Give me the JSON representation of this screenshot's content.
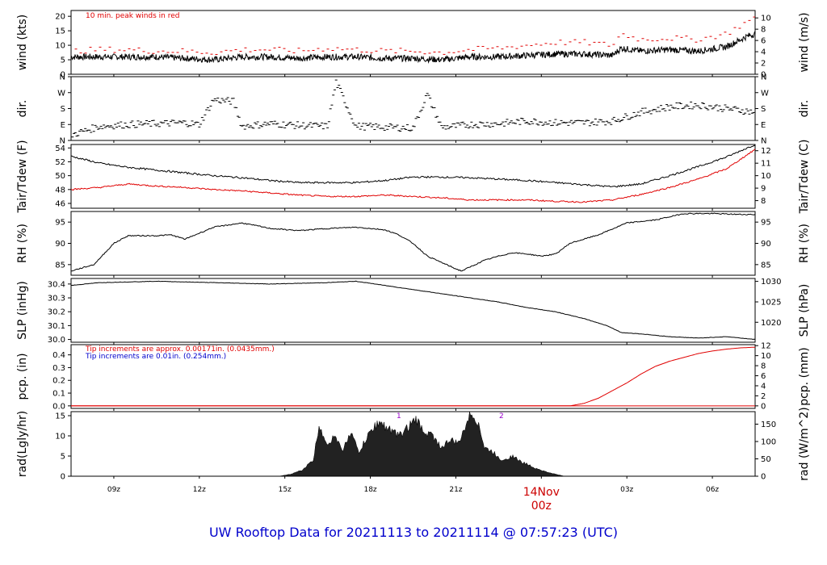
{
  "title": "UW Rooftop Data for 20211113  to  20211114 @ 07:57:23  (UTC)",
  "colors": {
    "black": "#000000",
    "red": "#e00000",
    "blue": "#0000cc",
    "purple": "#9900cc"
  },
  "x_axis": {
    "hour_range": [
      7.5,
      31.5
    ],
    "ticks": [
      {
        "h": 9,
        "label": "09z"
      },
      {
        "h": 12,
        "label": "12z"
      },
      {
        "h": 15,
        "label": "15z"
      },
      {
        "h": 18,
        "label": "18z"
      },
      {
        "h": 21,
        "label": "21z"
      },
      {
        "h": 27,
        "label": "03z"
      },
      {
        "h": 30,
        "label": "06z"
      }
    ],
    "day_marker": {
      "h": 24,
      "date": "14Nov",
      "label": "00z"
    }
  },
  "chart_data": [
    {
      "type": "line",
      "id": "wind",
      "ylabel": "wind (kts)",
      "y2label": "wind (m/s)",
      "ylim": [
        0,
        22
      ],
      "yticks": [
        0,
        5,
        10,
        15,
        20
      ],
      "y2ticks": [
        {
          "v": 0,
          "label": "0"
        },
        {
          "v": 3.89,
          "label": "2"
        },
        {
          "v": 7.78,
          "label": "4"
        },
        {
          "v": 11.66,
          "label": "6"
        },
        {
          "v": 15.55,
          "label": "8"
        },
        {
          "v": 19.44,
          "label": "10"
        }
      ],
      "annotation": "10 min. peak winds in red",
      "series": [
        {
          "role": "wind",
          "x": [
            7.5,
            8.5,
            9.5,
            10.5,
            11.5,
            12.5,
            13.5,
            14.5,
            15.5,
            16.5,
            17.5,
            18.5,
            19.5,
            20.5,
            21.5,
            22.5,
            23.5,
            24.5,
            25.5,
            26.5,
            26.8,
            27.5,
            28.5,
            29.5,
            30.5,
            31.2,
            31.5
          ],
          "y": [
            6,
            6,
            6,
            6,
            5.5,
            5,
            6,
            6,
            5.5,
            6,
            6,
            5.5,
            5.5,
            5,
            6,
            6,
            6.5,
            7,
            7,
            6.5,
            9,
            8,
            8.5,
            8,
            9.5,
            13,
            14
          ]
        },
        {
          "role": "peak",
          "x": [
            7.5,
            8.5,
            9.5,
            10.5,
            11.5,
            12.5,
            13.5,
            14.5,
            15.5,
            16.5,
            17.5,
            18.5,
            19.5,
            20.5,
            21.5,
            22.5,
            23.5,
            24.5,
            25.5,
            26.5,
            26.8,
            27.5,
            28.5,
            29.5,
            30.5,
            31.2,
            31.5
          ],
          "y": [
            8,
            8.5,
            8.5,
            8,
            8,
            7.5,
            8.5,
            8.5,
            8,
            9,
            8.5,
            8,
            8,
            7.5,
            8.5,
            9,
            10,
            11,
            11,
            10,
            14,
            12,
            12.5,
            12,
            14,
            18,
            19
          ]
        }
      ]
    },
    {
      "type": "scatter",
      "id": "dir",
      "ylabel": "dir.",
      "y2label": "dir.",
      "ylim": [
        0,
        360
      ],
      "ytick_labels": [
        {
          "v": 0,
          "label": "N"
        },
        {
          "v": 90,
          "label": "E"
        },
        {
          "v": 180,
          "label": "S"
        },
        {
          "v": 270,
          "label": "W"
        },
        {
          "v": 360,
          "label": "N"
        }
      ],
      "x": [
        7.5,
        8.5,
        9.5,
        10.5,
        11.5,
        12,
        12.5,
        13.2,
        13.5,
        14.5,
        15.5,
        16.5,
        16.8,
        17.5,
        18.5,
        19.5,
        20,
        20.5,
        21,
        21.5,
        22.5,
        23.5,
        24.5,
        25.5,
        26.5,
        27.5,
        28.5,
        29.5,
        30.5,
        31.5
      ],
      "y": [
        30,
        80,
        90,
        95,
        100,
        90,
        230,
        220,
        80,
        95,
        85,
        80,
        330,
        80,
        75,
        70,
        260,
        75,
        80,
        90,
        95,
        110,
        100,
        100,
        110,
        160,
        190,
        200,
        180,
        160
      ]
    },
    {
      "type": "line",
      "id": "temp",
      "ylabel": "Tair/Tdew (F)",
      "y2label": "Tair/Tdew (C)",
      "ylim": [
        45.3,
        54.5
      ],
      "yticks": [
        46,
        48,
        50,
        52,
        54
      ],
      "y2ticks": [
        {
          "v": 46.4,
          "label": "8"
        },
        {
          "v": 48.2,
          "label": "9"
        },
        {
          "v": 50,
          "label": "10"
        },
        {
          "v": 51.8,
          "label": "11"
        },
        {
          "v": 53.6,
          "label": "12"
        }
      ],
      "series": [
        {
          "role": "tair",
          "x": [
            7.5,
            8.5,
            9.5,
            10.5,
            11.5,
            12.5,
            13.5,
            14.5,
            15.5,
            16.5,
            17.5,
            18.5,
            19.5,
            20.5,
            21.5,
            22.5,
            23.5,
            24.5,
            25.5,
            26.5,
            27.5,
            28.5,
            29.5,
            30.5,
            31.5
          ],
          "y": [
            52.8,
            51.8,
            51.2,
            50.8,
            50.4,
            50,
            49.7,
            49.3,
            49,
            49,
            49,
            49.3,
            49.8,
            49.8,
            49.7,
            49.5,
            49.3,
            49,
            48.7,
            48.4,
            48.8,
            50,
            51.3,
            52.7,
            54.5
          ]
        },
        {
          "role": "tdew",
          "x": [
            7.5,
            8.5,
            9.5,
            10.5,
            11.5,
            12.5,
            13.5,
            14.5,
            15.5,
            16.5,
            17.5,
            18.5,
            19.5,
            20.5,
            21.5,
            22.5,
            23.5,
            24.5,
            25.5,
            26.5,
            27.5,
            28.5,
            29.5,
            30.5,
            31.5
          ],
          "y": [
            48,
            48.3,
            48.8,
            48.5,
            48.3,
            48,
            47.8,
            47.5,
            47.2,
            47,
            47,
            47.2,
            47,
            46.8,
            46.5,
            46.5,
            46.5,
            46.3,
            46.2,
            46.5,
            47.3,
            48.3,
            49.5,
            51,
            53.8
          ]
        }
      ]
    },
    {
      "type": "line",
      "id": "rh",
      "ylabel": "RH (%)",
      "y2label": "RH (%)",
      "ylim": [
        82.5,
        97.5
      ],
      "yticks": [
        85,
        90,
        95
      ],
      "y2ticks": [
        {
          "v": 85,
          "label": "85"
        },
        {
          "v": 90,
          "label": "90"
        },
        {
          "v": 95,
          "label": "95"
        }
      ],
      "series": [
        {
          "role": "rh",
          "x": [
            7.5,
            8.3,
            9,
            9.5,
            10.5,
            11,
            11.5,
            12.5,
            13.5,
            14.5,
            15.5,
            16.5,
            17.5,
            18.5,
            19,
            19.5,
            20,
            20.5,
            21,
            21.2,
            22,
            22.5,
            23,
            23.5,
            24,
            24.5,
            25,
            26,
            27,
            28,
            29,
            30,
            31,
            31.5
          ],
          "y": [
            83.5,
            85,
            90,
            91.8,
            91.8,
            92,
            91,
            93.8,
            94.8,
            93.5,
            93,
            93.5,
            93.8,
            93.2,
            92,
            90,
            87,
            85.5,
            84,
            83.5,
            86,
            87,
            87.8,
            87.5,
            87,
            87.5,
            90,
            92,
            94.8,
            95.5,
            97,
            97,
            96.8,
            96.8
          ]
        }
      ]
    },
    {
      "type": "line",
      "id": "slp",
      "ylabel": "SLP (inHg)",
      "y2label": "SLP (hPa)",
      "ylim": [
        29.98,
        30.44
      ],
      "yticks": [
        30.0,
        30.1,
        30.2,
        30.3,
        30.4
      ],
      "ytick_labels": [
        "30.0",
        "30.1",
        "30.2",
        "30.3",
        "30.4"
      ],
      "y2ticks": [
        {
          "v": 30.124,
          "label": "1020"
        },
        {
          "v": 30.271,
          "label": "1025"
        },
        {
          "v": 30.419,
          "label": "1030"
        }
      ],
      "series": [
        {
          "role": "slp",
          "x": [
            7.5,
            8.5,
            10.5,
            12.5,
            14.5,
            16.5,
            17.5,
            18.5,
            19.5,
            20.5,
            21.5,
            22.5,
            23.5,
            24.5,
            25.5,
            26.3,
            26.8,
            27.5,
            28.5,
            29.5,
            30.5,
            31.5
          ],
          "y": [
            30.39,
            30.41,
            30.42,
            30.41,
            30.4,
            30.41,
            30.42,
            30.39,
            30.36,
            30.33,
            30.3,
            30.27,
            30.23,
            30.2,
            30.15,
            30.1,
            30.05,
            30.04,
            30.02,
            30.01,
            30.02,
            30.0
          ]
        }
      ]
    },
    {
      "type": "line",
      "id": "pcp",
      "ylabel": "pcp. (in)",
      "y2label": "pcp. (mm)",
      "ylim": [
        -0.02,
        0.48
      ],
      "yticks": [
        0.0,
        0.1,
        0.2,
        0.3,
        0.4
      ],
      "ytick_labels": [
        "0.0",
        "0.1",
        "0.2",
        "0.3",
        "0.4"
      ],
      "y2ticks": [
        {
          "v": 0,
          "label": "0"
        },
        {
          "v": 0.0787,
          "label": "2"
        },
        {
          "v": 0.1575,
          "label": "4"
        },
        {
          "v": 0.2362,
          "label": "6"
        },
        {
          "v": 0.315,
          "label": "8"
        },
        {
          "v": 0.3937,
          "label": "10"
        },
        {
          "v": 0.4724,
          "label": "12"
        }
      ],
      "annotation_red": "Tip increments are approx. 0.00171in. (0.0435mm.)",
      "annotation_blue": "Tip increments are 0.01in. (0.254mm.)",
      "series": [
        {
          "role": "pcp",
          "x": [
            7.5,
            25,
            25.5,
            26,
            26.5,
            27,
            27.5,
            28,
            28.5,
            29,
            29.5,
            30,
            30.5,
            31,
            31.5
          ],
          "y": [
            0,
            0,
            0.02,
            0.06,
            0.12,
            0.18,
            0.25,
            0.31,
            0.35,
            0.38,
            0.41,
            0.43,
            0.445,
            0.455,
            0.46
          ]
        }
      ]
    },
    {
      "type": "area",
      "id": "rad",
      "ylabel": "rad(Lgly/hr)",
      "y2label": "rad (W/m^2)",
      "ylim": [
        0,
        16
      ],
      "yticks": [
        0,
        5,
        10,
        15
      ],
      "y2ticks": [
        {
          "v": 0,
          "label": "0"
        },
        {
          "v": 4.3,
          "label": "50"
        },
        {
          "v": 8.6,
          "label": "100"
        },
        {
          "v": 12.9,
          "label": "150"
        }
      ],
      "markers": [
        {
          "h": 19,
          "label": "1"
        },
        {
          "h": 22.6,
          "label": "2"
        }
      ],
      "series": [
        {
          "role": "rad",
          "x": [
            14.8,
            15.2,
            15.6,
            16,
            16.2,
            16.5,
            16.8,
            17,
            17.3,
            17.6,
            18,
            18.3,
            18.6,
            19,
            19.3,
            19.6,
            19.9,
            20.2,
            20.5,
            20.8,
            21.1,
            21.4,
            21.6,
            21.8,
            22,
            22.3,
            22.6,
            23,
            23.3,
            23.5,
            23.8,
            24.2,
            24.5,
            24.8
          ],
          "y": [
            0,
            0.5,
            1.5,
            4,
            12.5,
            8,
            10,
            6,
            11,
            6,
            11,
            13.5,
            12,
            10,
            12,
            14,
            11,
            10,
            7,
            9,
            8,
            14,
            15.5,
            13,
            7,
            6,
            4,
            5,
            3.5,
            3,
            2,
            1,
            0.5,
            0
          ]
        }
      ]
    }
  ]
}
